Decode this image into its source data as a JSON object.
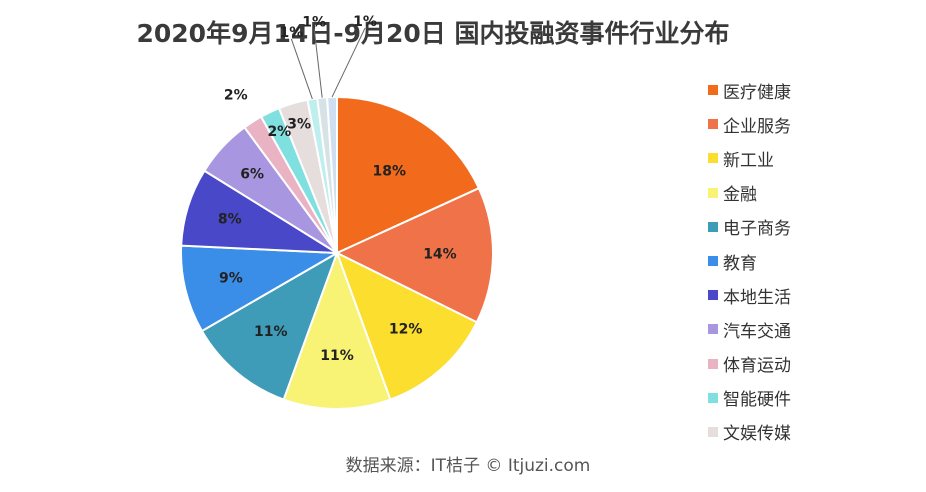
{
  "title": "2020年9月14日-9月20日 国内投融资事件行业分布",
  "source": "数据来源：IT桔子 © Itjuzi.com",
  "chart_data": {
    "type": "pie",
    "title": "2020年9月14日-9月20日 国内投融资事件行业分布",
    "categories": [
      "医疗健康",
      "企业服务",
      "新工业",
      "金融",
      "电子商务",
      "教育",
      "本地生活",
      "汽车交通",
      "体育运动",
      "智能硬件",
      "文娱传媒",
      "",
      "",
      ""
    ],
    "values": [
      18,
      14,
      12,
      11,
      11,
      9,
      8,
      6,
      2,
      2,
      3,
      1,
      1,
      1
    ],
    "labels": [
      "18%",
      "14%",
      "12%",
      "11%",
      "11%",
      "9%",
      "8%",
      "6%",
      "2%",
      "2%",
      "3%",
      "1%",
      "1%",
      "1%"
    ],
    "colors": [
      "#f26a1b",
      "#f07249",
      "#fcde2e",
      "#f8f275",
      "#3e9cb8",
      "#3b8ee8",
      "#4848c8",
      "#a996e0",
      "#eab3c3",
      "#7fe0df",
      "#e6dddd",
      "#bfeeee",
      "#d6e2e6",
      "#cfdff2"
    ],
    "legend": [
      {
        "label": "医疗健康",
        "color": "#f26a1b"
      },
      {
        "label": "企业服务",
        "color": "#f07249"
      },
      {
        "label": "新工业",
        "color": "#fcde2e"
      },
      {
        "label": "金融",
        "color": "#f8f275"
      },
      {
        "label": "电子商务",
        "color": "#3e9cb8"
      },
      {
        "label": "教育",
        "color": "#3b8ee8"
      },
      {
        "label": "本地生活",
        "color": "#4848c8"
      },
      {
        "label": "汽车交通",
        "color": "#a996e0"
      },
      {
        "label": "体育运动",
        "color": "#eab3c3"
      },
      {
        "label": "智能硬件",
        "color": "#7fe0df"
      },
      {
        "label": "文娱传媒",
        "color": "#e6dddd"
      }
    ],
    "legend_position": "right"
  }
}
